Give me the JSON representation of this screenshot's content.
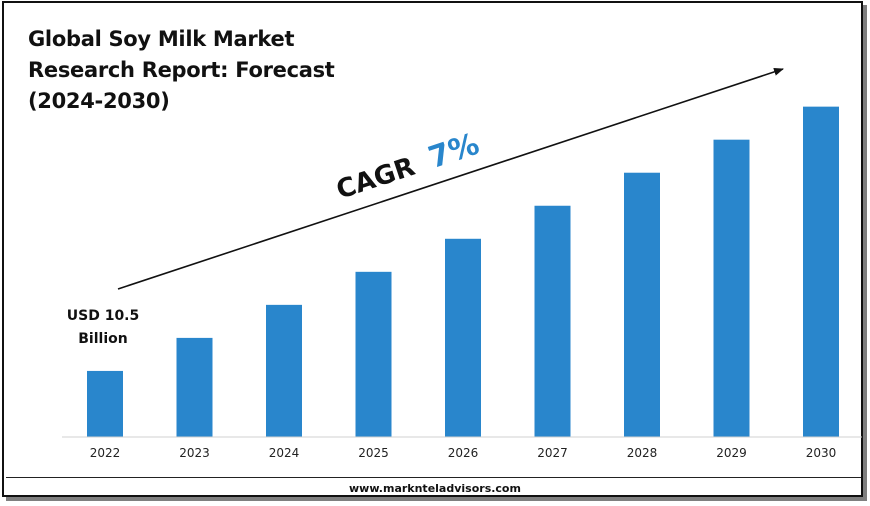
{
  "title_lines": [
    "Global Soy Milk Market",
    "Research Report: Forecast",
    "(2024-2030)"
  ],
  "footer": {
    "url": "www.markntel­advisors.com"
  },
  "cagr": {
    "label": "CAGR",
    "value": "7%"
  },
  "start_annotation": {
    "line1": "USD 10.5",
    "line2": "Billion"
  },
  "colors": {
    "bar": "#2986cc",
    "cagr_value": "#2986cc",
    "text": "#111111"
  },
  "chart_data": {
    "type": "bar",
    "title": "Global Soy Milk Market Research Report: Forecast (2024-2030)",
    "categories": [
      "2022",
      "2023",
      "2024",
      "2025",
      "2026",
      "2027",
      "2028",
      "2029",
      "2030"
    ],
    "values": [
      1,
      1.5,
      2,
      2.5,
      3,
      3.5,
      4,
      4.5,
      5
    ],
    "ylim": [
      0,
      5.6
    ],
    "xlabel": "",
    "ylabel": "",
    "grid": false,
    "annotations": [
      "USD 10.5 Billion",
      "CAGR 7%"
    ]
  }
}
